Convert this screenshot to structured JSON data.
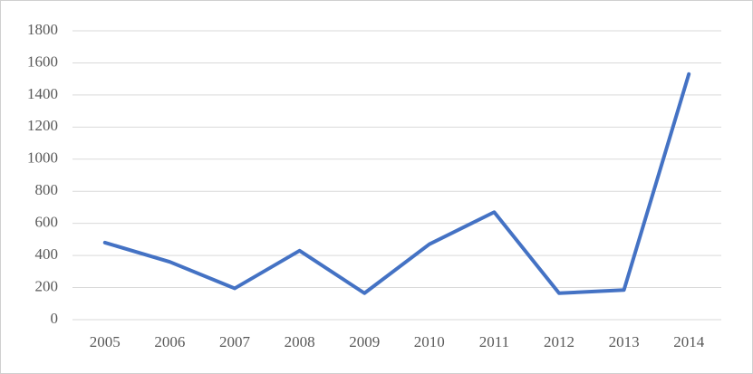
{
  "chart_data": {
    "type": "line",
    "categories": [
      "2005",
      "2006",
      "2007",
      "2008",
      "2009",
      "2010",
      "2011",
      "2012",
      "2013",
      "2014"
    ],
    "values": [
      480,
      360,
      195,
      430,
      165,
      470,
      670,
      165,
      185,
      1530
    ],
    "color": "#4472c4",
    "ylim": [
      0,
      1800
    ],
    "yticks": [
      0,
      200,
      400,
      600,
      800,
      1000,
      1200,
      1400,
      1600,
      1800
    ],
    "grid": true
  }
}
